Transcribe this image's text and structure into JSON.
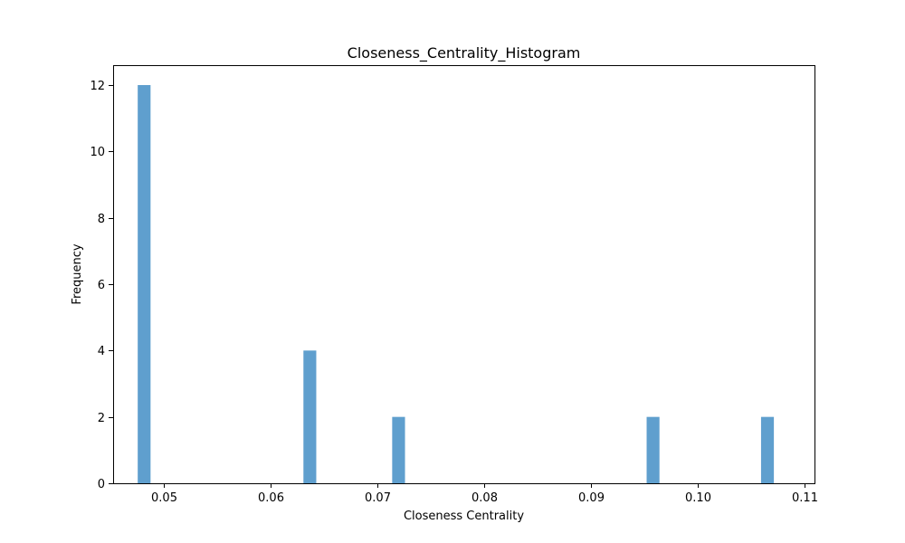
{
  "chart_data": {
    "type": "bar",
    "title": "Closeness_Centrality_Histogram",
    "xlabel": "Closeness Centrality",
    "ylabel": "Frequency",
    "xlim": [
      0.0453,
      0.1109
    ],
    "ylim": [
      0,
      12.6
    ],
    "x_ticks": [
      "0.05",
      "0.06",
      "0.07",
      "0.08",
      "0.09",
      "0.10",
      "0.11"
    ],
    "y_ticks": [
      "0",
      "2",
      "4",
      "6",
      "8",
      "10",
      "12"
    ],
    "bin_range": [
      0.0476,
      0.1071
    ],
    "bin_count": 50,
    "bars": [
      {
        "x_start": 0.0476,
        "x_end": 0.0488,
        "value": 12
      },
      {
        "x_start": 0.0631,
        "x_end": 0.0643,
        "value": 4
      },
      {
        "x_start": 0.0714,
        "x_end": 0.0726,
        "value": 2
      },
      {
        "x_start": 0.0952,
        "x_end": 0.0964,
        "value": 2
      },
      {
        "x_start": 0.1059,
        "x_end": 0.1071,
        "value": 2
      }
    ],
    "bar_color": "#5f9fce",
    "grid": false,
    "legend": "none"
  }
}
